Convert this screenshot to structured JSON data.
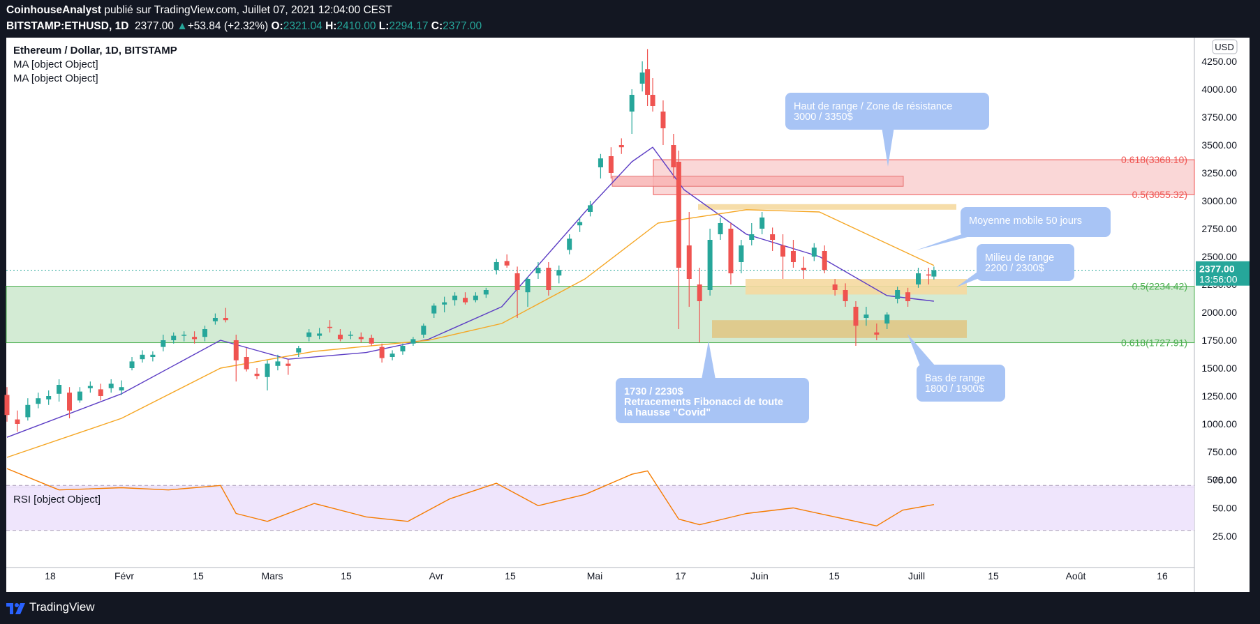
{
  "header": {
    "author": "CoinhouseAnalyst",
    "published_text": " publié sur TradingView.com, Juillet 07, 2021 12:04:00 CEST",
    "symbol": "BITSTAMP:ETHUSD, 1D",
    "last": "2377.00",
    "change_arrow": "▲",
    "change": "+53.84 (+2.32%)",
    "o_label": "O:",
    "o_value": "2321.04",
    "h_label": "H:",
    "h_value": "2410.00",
    "l_label": "L:",
    "l_value": "2294.17",
    "c_label": "C:",
    "c_value": "2377.00"
  },
  "legend": {
    "title": "Ethereum / Dollar, 1D, BITSTAMP",
    "ma1": "MA [object Object]",
    "ma2": "MA [object Object]",
    "rsi": "RSI [object Object]"
  },
  "price_axis": {
    "currency": "USD",
    "ticks": [
      "4250.00",
      "4000.00",
      "3750.00",
      "3500.00",
      "3250.00",
      "3000.00",
      "2750.00",
      "2500.00",
      "2250.00",
      "2000.00",
      "1750.00",
      "1500.00",
      "1250.00",
      "1000.00",
      "750.00",
      "500.00"
    ],
    "last_price": "2377.00",
    "countdown": "13:56:00"
  },
  "rsi_axis": {
    "ticks": [
      "75.00",
      "50.00",
      "25.00"
    ]
  },
  "time_axis": {
    "labels": [
      "18",
      "Févr",
      "15",
      "Mars",
      "15",
      "Avr",
      "15",
      "Mai",
      "17",
      "Juin",
      "15",
      "Juill",
      "15",
      "Août",
      "16"
    ]
  },
  "fib_labels": [
    "0.618(3368.10)",
    "0.5(3055.32)",
    "0.5(2234.42)",
    "0.618(1727.91)"
  ],
  "annotations": {
    "resistance": [
      "Haut de range / Zone de résistance",
      "3000 / 3350$"
    ],
    "ma50": [
      "Moyenne mobile 50 jours"
    ],
    "mid": [
      "Milieu de range",
      "2200 / 2300$"
    ],
    "bottom": [
      "Bas de range",
      "1800 / 1900$"
    ],
    "fib": [
      "1730 / 2230$",
      "Retracements Fibonacci de toute",
      "la hausse \"Covid\""
    ]
  },
  "footer": {
    "brand": "TradingView"
  },
  "colors": {
    "up": "#26a69a",
    "down": "#ef5350",
    "ma_fast": "#5b3cc4",
    "ma_slow": "#f5a623",
    "rsi": "#f57c00",
    "callout": "#a8c4f5",
    "green_zone": "#c8e6c9",
    "red_zone": "#f9d0d0",
    "orange_zone": "#f5d9a0"
  },
  "chart_data": {
    "type": "candlestick",
    "x_range": [
      "2021-01-10",
      "2021-08-21"
    ],
    "y_range": [
      450,
      4380
    ],
    "ohlc": [
      {
        "date": "2021-01-10",
        "o": 1260,
        "h": 1330,
        "l": 1020,
        "c": 1080
      },
      {
        "date": "2021-01-12",
        "o": 1040,
        "h": 1120,
        "l": 930,
        "c": 1000
      },
      {
        "date": "2021-01-14",
        "o": 1060,
        "h": 1230,
        "l": 1030,
        "c": 1170
      },
      {
        "date": "2021-01-16",
        "o": 1180,
        "h": 1280,
        "l": 1140,
        "c": 1230
      },
      {
        "date": "2021-01-18",
        "o": 1220,
        "h": 1300,
        "l": 1170,
        "c": 1250
      },
      {
        "date": "2021-01-20",
        "o": 1270,
        "h": 1400,
        "l": 1200,
        "c": 1350
      },
      {
        "date": "2021-01-22",
        "o": 1280,
        "h": 1330,
        "l": 1050,
        "c": 1120
      },
      {
        "date": "2021-01-24",
        "o": 1210,
        "h": 1330,
        "l": 1190,
        "c": 1290
      },
      {
        "date": "2021-01-26",
        "o": 1320,
        "h": 1380,
        "l": 1280,
        "c": 1340
      },
      {
        "date": "2021-01-28",
        "o": 1310,
        "h": 1360,
        "l": 1210,
        "c": 1250
      },
      {
        "date": "2021-01-30",
        "o": 1320,
        "h": 1400,
        "l": 1280,
        "c": 1360
      },
      {
        "date": "2021-02-01",
        "o": 1300,
        "h": 1390,
        "l": 1260,
        "c": 1330
      },
      {
        "date": "2021-02-03",
        "o": 1500,
        "h": 1600,
        "l": 1480,
        "c": 1560
      },
      {
        "date": "2021-02-05",
        "o": 1580,
        "h": 1660,
        "l": 1550,
        "c": 1620
      },
      {
        "date": "2021-02-07",
        "o": 1600,
        "h": 1650,
        "l": 1560,
        "c": 1620
      },
      {
        "date": "2021-02-09",
        "o": 1690,
        "h": 1800,
        "l": 1650,
        "c": 1750
      },
      {
        "date": "2021-02-11",
        "o": 1750,
        "h": 1820,
        "l": 1720,
        "c": 1790
      },
      {
        "date": "2021-02-13",
        "o": 1790,
        "h": 1830,
        "l": 1740,
        "c": 1800
      },
      {
        "date": "2021-02-15",
        "o": 1780,
        "h": 1830,
        "l": 1720,
        "c": 1760
      },
      {
        "date": "2021-02-17",
        "o": 1780,
        "h": 1880,
        "l": 1740,
        "c": 1850
      },
      {
        "date": "2021-02-19",
        "o": 1920,
        "h": 1990,
        "l": 1890,
        "c": 1950
      },
      {
        "date": "2021-02-21",
        "o": 1950,
        "h": 2040,
        "l": 1910,
        "c": 1930
      },
      {
        "date": "2021-02-23",
        "o": 1750,
        "h": 1800,
        "l": 1380,
        "c": 1570
      },
      {
        "date": "2021-02-25",
        "o": 1600,
        "h": 1680,
        "l": 1470,
        "c": 1490
      },
      {
        "date": "2021-02-27",
        "o": 1450,
        "h": 1500,
        "l": 1400,
        "c": 1430
      },
      {
        "date": "2021-03-01",
        "o": 1420,
        "h": 1570,
        "l": 1300,
        "c": 1540
      },
      {
        "date": "2021-03-03",
        "o": 1520,
        "h": 1620,
        "l": 1480,
        "c": 1560
      },
      {
        "date": "2021-03-05",
        "o": 1540,
        "h": 1580,
        "l": 1440,
        "c": 1520
      },
      {
        "date": "2021-03-07",
        "o": 1640,
        "h": 1700,
        "l": 1600,
        "c": 1680
      },
      {
        "date": "2021-03-09",
        "o": 1780,
        "h": 1850,
        "l": 1740,
        "c": 1820
      },
      {
        "date": "2021-03-11",
        "o": 1790,
        "h": 1860,
        "l": 1760,
        "c": 1810
      },
      {
        "date": "2021-03-13",
        "o": 1870,
        "h": 1930,
        "l": 1820,
        "c": 1860
      },
      {
        "date": "2021-03-15",
        "o": 1800,
        "h": 1850,
        "l": 1740,
        "c": 1760
      },
      {
        "date": "2021-03-17",
        "o": 1790,
        "h": 1830,
        "l": 1760,
        "c": 1800
      },
      {
        "date": "2021-03-19",
        "o": 1780,
        "h": 1820,
        "l": 1730,
        "c": 1760
      },
      {
        "date": "2021-03-21",
        "o": 1770,
        "h": 1800,
        "l": 1700,
        "c": 1720
      },
      {
        "date": "2021-03-23",
        "o": 1690,
        "h": 1720,
        "l": 1550,
        "c": 1590
      },
      {
        "date": "2021-03-25",
        "o": 1600,
        "h": 1660,
        "l": 1570,
        "c": 1630
      },
      {
        "date": "2021-03-27",
        "o": 1650,
        "h": 1720,
        "l": 1620,
        "c": 1700
      },
      {
        "date": "2021-03-29",
        "o": 1720,
        "h": 1780,
        "l": 1700,
        "c": 1760
      },
      {
        "date": "2021-03-31",
        "o": 1800,
        "h": 1900,
        "l": 1770,
        "c": 1880
      },
      {
        "date": "2021-04-02",
        "o": 1990,
        "h": 2080,
        "l": 1950,
        "c": 2060
      },
      {
        "date": "2021-04-04",
        "o": 2070,
        "h": 2140,
        "l": 2000,
        "c": 2090
      },
      {
        "date": "2021-04-06",
        "o": 2110,
        "h": 2180,
        "l": 2060,
        "c": 2150
      },
      {
        "date": "2021-04-08",
        "o": 2130,
        "h": 2180,
        "l": 2070,
        "c": 2090
      },
      {
        "date": "2021-04-10",
        "o": 2110,
        "h": 2180,
        "l": 2090,
        "c": 2150
      },
      {
        "date": "2021-04-12",
        "o": 2160,
        "h": 2220,
        "l": 2130,
        "c": 2200
      },
      {
        "date": "2021-04-14",
        "o": 2380,
        "h": 2480,
        "l": 2340,
        "c": 2450
      },
      {
        "date": "2021-04-16",
        "o": 2460,
        "h": 2520,
        "l": 2400,
        "c": 2420
      },
      {
        "date": "2021-04-18",
        "o": 2350,
        "h": 2410,
        "l": 1950,
        "c": 2200
      },
      {
        "date": "2021-04-20",
        "o": 2180,
        "h": 2320,
        "l": 2050,
        "c": 2300
      },
      {
        "date": "2021-04-22",
        "o": 2350,
        "h": 2450,
        "l": 2300,
        "c": 2400
      },
      {
        "date": "2021-04-24",
        "o": 2400,
        "h": 2450,
        "l": 2150,
        "c": 2200
      },
      {
        "date": "2021-04-26",
        "o": 2330,
        "h": 2420,
        "l": 2260,
        "c": 2380
      },
      {
        "date": "2021-04-28",
        "o": 2560,
        "h": 2700,
        "l": 2520,
        "c": 2660
      },
      {
        "date": "2021-04-30",
        "o": 2780,
        "h": 2850,
        "l": 2720,
        "c": 2810
      },
      {
        "date": "2021-05-02",
        "o": 2900,
        "h": 3000,
        "l": 2860,
        "c": 2960
      },
      {
        "date": "2021-05-04",
        "o": 3300,
        "h": 3420,
        "l": 3200,
        "c": 3380
      },
      {
        "date": "2021-05-06",
        "o": 3400,
        "h": 3480,
        "l": 3200,
        "c": 3250
      },
      {
        "date": "2021-05-08",
        "o": 3500,
        "h": 3560,
        "l": 3420,
        "c": 3480
      },
      {
        "date": "2021-05-10",
        "o": 3800,
        "h": 4000,
        "l": 3600,
        "c": 3950
      },
      {
        "date": "2021-05-12",
        "o": 4050,
        "h": 4250,
        "l": 3980,
        "c": 4150
      },
      {
        "date": "2021-05-13",
        "o": 4180,
        "h": 4360,
        "l": 3850,
        "c": 3950
      },
      {
        "date": "2021-05-14",
        "o": 3950,
        "h": 4100,
        "l": 3800,
        "c": 3850
      },
      {
        "date": "2021-05-16",
        "o": 3800,
        "h": 3900,
        "l": 3500,
        "c": 3650
      },
      {
        "date": "2021-05-18",
        "o": 3500,
        "h": 3600,
        "l": 3200,
        "c": 3300
      },
      {
        "date": "2021-05-19",
        "o": 3350,
        "h": 3450,
        "l": 1850,
        "c": 2400
      },
      {
        "date": "2021-05-21",
        "o": 2600,
        "h": 2900,
        "l": 2050,
        "c": 2300
      },
      {
        "date": "2021-05-23",
        "o": 2250,
        "h": 2400,
        "l": 1730,
        "c": 2100
      },
      {
        "date": "2021-05-25",
        "o": 2200,
        "h": 2750,
        "l": 2150,
        "c": 2650
      },
      {
        "date": "2021-05-27",
        "o": 2700,
        "h": 2850,
        "l": 2650,
        "c": 2800
      },
      {
        "date": "2021-05-29",
        "o": 2750,
        "h": 2800,
        "l": 2250,
        "c": 2350
      },
      {
        "date": "2021-05-31",
        "o": 2450,
        "h": 2650,
        "l": 2350,
        "c": 2600
      },
      {
        "date": "2021-06-02",
        "o": 2650,
        "h": 2800,
        "l": 2600,
        "c": 2700
      },
      {
        "date": "2021-06-04",
        "o": 2750,
        "h": 2900,
        "l": 2700,
        "c": 2850
      },
      {
        "date": "2021-06-06",
        "o": 2700,
        "h": 2760,
        "l": 2550,
        "c": 2650
      },
      {
        "date": "2021-06-08",
        "o": 2600,
        "h": 2700,
        "l": 2300,
        "c": 2500
      },
      {
        "date": "2021-06-10",
        "o": 2550,
        "h": 2650,
        "l": 2400,
        "c": 2450
      },
      {
        "date": "2021-06-12",
        "o": 2400,
        "h": 2500,
        "l": 2300,
        "c": 2380
      },
      {
        "date": "2021-06-14",
        "o": 2500,
        "h": 2620,
        "l": 2460,
        "c": 2580
      },
      {
        "date": "2021-06-16",
        "o": 2550,
        "h": 2600,
        "l": 2350,
        "c": 2380
      },
      {
        "date": "2021-06-18",
        "o": 2250,
        "h": 2300,
        "l": 2150,
        "c": 2200
      },
      {
        "date": "2021-06-20",
        "o": 2200,
        "h": 2260,
        "l": 2050,
        "c": 2100
      },
      {
        "date": "2021-06-22",
        "o": 2050,
        "h": 2100,
        "l": 1700,
        "c": 1880
      },
      {
        "date": "2021-06-24",
        "o": 1950,
        "h": 2050,
        "l": 1880,
        "c": 1980
      },
      {
        "date": "2021-06-26",
        "o": 1820,
        "h": 1900,
        "l": 1750,
        "c": 1800
      },
      {
        "date": "2021-06-28",
        "o": 1900,
        "h": 2000,
        "l": 1850,
        "c": 1980
      },
      {
        "date": "2021-06-30",
        "o": 2120,
        "h": 2230,
        "l": 2080,
        "c": 2200
      },
      {
        "date": "2021-07-02",
        "o": 2180,
        "h": 2220,
        "l": 2050,
        "c": 2100
      },
      {
        "date": "2021-07-04",
        "o": 2250,
        "h": 2400,
        "l": 2220,
        "c": 2350
      },
      {
        "date": "2021-07-06",
        "o": 2340,
        "h": 2400,
        "l": 2250,
        "c": 2330
      },
      {
        "date": "2021-07-07",
        "o": 2321.04,
        "h": 2410,
        "l": 2294.17,
        "c": 2377
      }
    ],
    "series": [
      {
        "x": [
          "2021-01-10",
          "2021-02-01",
          "2021-02-20",
          "2021-03-05",
          "2021-03-20",
          "2021-04-01",
          "2021-04-15",
          "2021-05-01",
          "2021-05-10",
          "2021-05-14",
          "2021-05-20",
          "2021-06-01",
          "2021-06-15",
          "2021-06-28",
          "2021-07-07"
        ],
        "values": [
          880,
          1270,
          1750,
          1580,
          1640,
          1760,
          2050,
          2900,
          3350,
          3480,
          3100,
          2700,
          2500,
          2150,
          2100
        ]
      },
      {
        "x": [
          "2021-01-10",
          "2021-02-01",
          "2021-02-20",
          "2021-03-10",
          "2021-04-01",
          "2021-04-15",
          "2021-05-01",
          "2021-05-15",
          "2021-06-01",
          "2021-06-15",
          "2021-07-07"
        ],
        "values": [
          700,
          1050,
          1500,
          1650,
          1750,
          1900,
          2300,
          2800,
          2920,
          2900,
          2420
        ]
      }
    ],
    "rsi": {
      "x": [
        "2021-01-10",
        "2021-01-20",
        "2021-02-01",
        "2021-02-10",
        "2021-02-20",
        "2021-02-23",
        "2021-03-01",
        "2021-03-10",
        "2021-03-20",
        "2021-03-28",
        "2021-04-05",
        "2021-04-14",
        "2021-04-22",
        "2021-05-01",
        "2021-05-10",
        "2021-05-13",
        "2021-05-19",
        "2021-05-23",
        "2021-06-01",
        "2021-06-10",
        "2021-06-18",
        "2021-06-26",
        "2021-07-01",
        "2021-07-07"
      ],
      "values": [
        85,
        66,
        68,
        66,
        70,
        45,
        38,
        54,
        42,
        38,
        58,
        72,
        52,
        62,
        80,
        83,
        40,
        35,
        45,
        50,
        42,
        34,
        48,
        53
      ],
      "levels": [
        70,
        30
      ],
      "ticks": [
        75,
        50,
        25
      ]
    }
  }
}
